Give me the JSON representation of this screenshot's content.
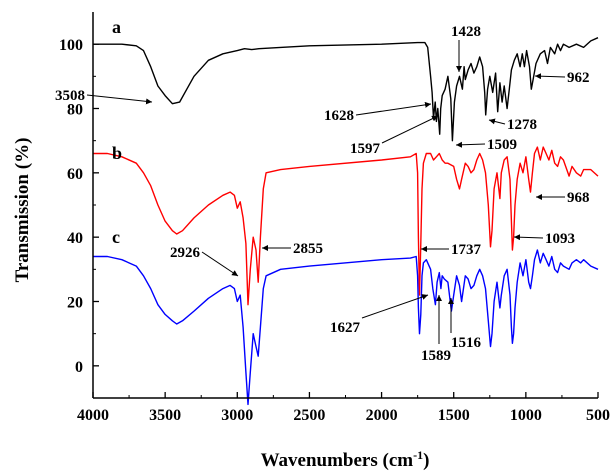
{
  "chart_data": {
    "type": "line",
    "title": "",
    "xlabel": "Wavenumbers (cm",
    "xlabel_sup": "-1",
    "xlabel_close": ")",
    "ylabel": "Transmission (%)",
    "xlim": [
      4000,
      500
    ],
    "ylim": [
      -10,
      110
    ],
    "x_reversed": true,
    "x_ticks": [
      4000,
      3500,
      3000,
      2500,
      2000,
      1500,
      1000,
      500
    ],
    "y_ticks": [
      0,
      20,
      40,
      60,
      80,
      100
    ],
    "grid": false,
    "series": [
      {
        "name": "a",
        "color": "#000000",
        "points": [
          [
            4000,
            100
          ],
          [
            3800,
            100
          ],
          [
            3700,
            99.5
          ],
          [
            3650,
            98
          ],
          [
            3600,
            93
          ],
          [
            3550,
            87
          ],
          [
            3500,
            84
          ],
          [
            3450,
            81.5
          ],
          [
            3400,
            82
          ],
          [
            3350,
            86
          ],
          [
            3300,
            90
          ],
          [
            3200,
            95
          ],
          [
            3100,
            97
          ],
          [
            3000,
            98
          ],
          [
            2950,
            98.6
          ],
          [
            2900,
            98.3
          ],
          [
            2850,
            98.6
          ],
          [
            2700,
            99
          ],
          [
            2500,
            99.5
          ],
          [
            2000,
            100
          ],
          [
            1750,
            100.5
          ],
          [
            1700,
            100.5
          ],
          [
            1680,
            99
          ],
          [
            1660,
            90
          ],
          [
            1650,
            85
          ],
          [
            1640,
            77
          ],
          [
            1628,
            82
          ],
          [
            1620,
            76
          ],
          [
            1610,
            80
          ],
          [
            1597,
            72
          ],
          [
            1590,
            80
          ],
          [
            1580,
            84
          ],
          [
            1560,
            86
          ],
          [
            1540,
            90
          ],
          [
            1520,
            83
          ],
          [
            1509,
            70
          ],
          [
            1495,
            82
          ],
          [
            1480,
            87
          ],
          [
            1460,
            90
          ],
          [
            1440,
            86
          ],
          [
            1428,
            93
          ],
          [
            1420,
            89
          ],
          [
            1400,
            92
          ],
          [
            1380,
            94
          ],
          [
            1360,
            91
          ],
          [
            1340,
            93
          ],
          [
            1320,
            96
          ],
          [
            1300,
            93
          ],
          [
            1285,
            85
          ],
          [
            1278,
            78
          ],
          [
            1265,
            86
          ],
          [
            1250,
            90
          ],
          [
            1230,
            85
          ],
          [
            1210,
            91
          ],
          [
            1195,
            79
          ],
          [
            1180,
            88
          ],
          [
            1165,
            82
          ],
          [
            1150,
            87
          ],
          [
            1130,
            80
          ],
          [
            1115,
            86
          ],
          [
            1100,
            92
          ],
          [
            1080,
            95
          ],
          [
            1060,
            97
          ],
          [
            1040,
            93
          ],
          [
            1025,
            97
          ],
          [
            1010,
            93
          ],
          [
            995,
            98
          ],
          [
            975,
            93
          ],
          [
            962,
            86
          ],
          [
            950,
            89
          ],
          [
            930,
            94
          ],
          [
            900,
            97
          ],
          [
            870,
            98
          ],
          [
            850,
            94
          ],
          [
            830,
            99
          ],
          [
            800,
            97
          ],
          [
            780,
            100
          ],
          [
            760,
            98
          ],
          [
            740,
            100
          ],
          [
            700,
            99
          ],
          [
            650,
            100
          ],
          [
            600,
            99
          ],
          [
            550,
            101
          ],
          [
            500,
            102
          ]
        ]
      },
      {
        "name": "b",
        "color": "#ff0000",
        "points": [
          [
            4000,
            66
          ],
          [
            3900,
            66
          ],
          [
            3800,
            65
          ],
          [
            3700,
            63
          ],
          [
            3650,
            60
          ],
          [
            3600,
            56
          ],
          [
            3550,
            50
          ],
          [
            3500,
            45
          ],
          [
            3450,
            42
          ],
          [
            3420,
            41
          ],
          [
            3380,
            42
          ],
          [
            3300,
            46
          ],
          [
            3200,
            50
          ],
          [
            3100,
            53
          ],
          [
            3050,
            54
          ],
          [
            3020,
            53
          ],
          [
            3000,
            49
          ],
          [
            2980,
            51
          ],
          [
            2960,
            46
          ],
          [
            2940,
            38
          ],
          [
            2926,
            19
          ],
          [
            2910,
            30
          ],
          [
            2890,
            40
          ],
          [
            2870,
            36
          ],
          [
            2855,
            26
          ],
          [
            2840,
            40
          ],
          [
            2820,
            55
          ],
          [
            2800,
            60
          ],
          [
            2700,
            61
          ],
          [
            2500,
            62
          ],
          [
            2000,
            64
          ],
          [
            1800,
            65
          ],
          [
            1760,
            66
          ],
          [
            1750,
            60
          ],
          [
            1745,
            40
          ],
          [
            1737,
            22
          ],
          [
            1728,
            38
          ],
          [
            1720,
            55
          ],
          [
            1710,
            63
          ],
          [
            1690,
            66
          ],
          [
            1660,
            66
          ],
          [
            1640,
            64
          ],
          [
            1620,
            65
          ],
          [
            1600,
            66
          ],
          [
            1580,
            64
          ],
          [
            1560,
            63
          ],
          [
            1540,
            63
          ],
          [
            1500,
            62
          ],
          [
            1480,
            58
          ],
          [
            1460,
            55
          ],
          [
            1445,
            58
          ],
          [
            1420,
            63
          ],
          [
            1400,
            62
          ],
          [
            1380,
            60
          ],
          [
            1360,
            61
          ],
          [
            1340,
            64
          ],
          [
            1320,
            66
          ],
          [
            1300,
            64
          ],
          [
            1280,
            60
          ],
          [
            1260,
            50
          ],
          [
            1245,
            37
          ],
          [
            1235,
            42
          ],
          [
            1220,
            55
          ],
          [
            1200,
            60
          ],
          [
            1180,
            52
          ],
          [
            1170,
            60
          ],
          [
            1150,
            64
          ],
          [
            1130,
            65
          ],
          [
            1110,
            58
          ],
          [
            1100,
            45
          ],
          [
            1093,
            36
          ],
          [
            1085,
            40
          ],
          [
            1075,
            50
          ],
          [
            1060,
            58
          ],
          [
            1040,
            63
          ],
          [
            1020,
            60
          ],
          [
            1000,
            65
          ],
          [
            980,
            58
          ],
          [
            968,
            54
          ],
          [
            955,
            60
          ],
          [
            940,
            66
          ],
          [
            920,
            68
          ],
          [
            900,
            64
          ],
          [
            880,
            68
          ],
          [
            860,
            66
          ],
          [
            840,
            64
          ],
          [
            820,
            67
          ],
          [
            800,
            63
          ],
          [
            780,
            62
          ],
          [
            760,
            65
          ],
          [
            740,
            64
          ],
          [
            700,
            59
          ],
          [
            680,
            62
          ],
          [
            650,
            60
          ],
          [
            620,
            59
          ],
          [
            600,
            61
          ],
          [
            550,
            61
          ],
          [
            500,
            59
          ]
        ]
      },
      {
        "name": "c",
        "color": "#0000ff",
        "points": [
          [
            4000,
            34
          ],
          [
            3900,
            34
          ],
          [
            3800,
            33
          ],
          [
            3700,
            31
          ],
          [
            3650,
            28
          ],
          [
            3600,
            24
          ],
          [
            3550,
            19
          ],
          [
            3500,
            16
          ],
          [
            3450,
            14
          ],
          [
            3420,
            13
          ],
          [
            3380,
            14
          ],
          [
            3300,
            17
          ],
          [
            3200,
            21
          ],
          [
            3100,
            24
          ],
          [
            3050,
            25
          ],
          [
            3020,
            24
          ],
          [
            3000,
            20
          ],
          [
            2980,
            22
          ],
          [
            2960,
            12
          ],
          [
            2940,
            -2
          ],
          [
            2926,
            -12
          ],
          [
            2910,
            -2
          ],
          [
            2890,
            10
          ],
          [
            2870,
            6
          ],
          [
            2855,
            3
          ],
          [
            2840,
            12
          ],
          [
            2820,
            24
          ],
          [
            2800,
            28
          ],
          [
            2700,
            30
          ],
          [
            2500,
            31
          ],
          [
            2000,
            33
          ],
          [
            1800,
            33.5
          ],
          [
            1760,
            34
          ],
          [
            1750,
            28
          ],
          [
            1745,
            18
          ],
          [
            1737,
            10
          ],
          [
            1728,
            16
          ],
          [
            1720,
            28
          ],
          [
            1710,
            32
          ],
          [
            1690,
            33
          ],
          [
            1660,
            30
          ],
          [
            1645,
            24
          ],
          [
            1627,
            19
          ],
          [
            1615,
            26
          ],
          [
            1600,
            29
          ],
          [
            1589,
            24
          ],
          [
            1580,
            28
          ],
          [
            1565,
            27
          ],
          [
            1540,
            26
          ],
          [
            1516,
            17
          ],
          [
            1500,
            22
          ],
          [
            1480,
            28
          ],
          [
            1460,
            25
          ],
          [
            1445,
            20
          ],
          [
            1420,
            28
          ],
          [
            1400,
            27
          ],
          [
            1380,
            24
          ],
          [
            1360,
            25
          ],
          [
            1340,
            28
          ],
          [
            1320,
            30
          ],
          [
            1300,
            28
          ],
          [
            1280,
            24
          ],
          [
            1260,
            14
          ],
          [
            1245,
            6
          ],
          [
            1235,
            10
          ],
          [
            1220,
            20
          ],
          [
            1200,
            26
          ],
          [
            1180,
            18
          ],
          [
            1170,
            22
          ],
          [
            1150,
            28
          ],
          [
            1130,
            30
          ],
          [
            1110,
            22
          ],
          [
            1100,
            12
          ],
          [
            1093,
            7
          ],
          [
            1085,
            10
          ],
          [
            1075,
            18
          ],
          [
            1060,
            26
          ],
          [
            1040,
            32
          ],
          [
            1020,
            28
          ],
          [
            1000,
            33
          ],
          [
            980,
            26
          ],
          [
            968,
            24
          ],
          [
            955,
            28
          ],
          [
            940,
            33
          ],
          [
            920,
            36
          ],
          [
            900,
            32
          ],
          [
            880,
            35
          ],
          [
            860,
            33
          ],
          [
            840,
            31
          ],
          [
            820,
            34
          ],
          [
            800,
            30
          ],
          [
            780,
            29
          ],
          [
            760,
            32
          ],
          [
            740,
            31
          ],
          [
            700,
            30
          ],
          [
            680,
            32
          ],
          [
            650,
            33
          ],
          [
            620,
            32
          ],
          [
            600,
            33
          ],
          [
            550,
            31
          ],
          [
            500,
            30
          ]
        ]
      }
    ],
    "annotations": [
      {
        "text": "3508",
        "x": 3508,
        "y": 82,
        "anchor": "end"
      },
      {
        "text": "1428",
        "x": 1428,
        "y": 93,
        "anchor": "middle"
      },
      {
        "text": "962",
        "x": 962,
        "y": 86,
        "anchor": "start"
      },
      {
        "text": "1628",
        "x": 1628,
        "y": 82,
        "anchor": "end"
      },
      {
        "text": "1278",
        "x": 1278,
        "y": 78,
        "anchor": "start"
      },
      {
        "text": "1597",
        "x": 1597,
        "y": 72,
        "anchor": "end"
      },
      {
        "text": "1509",
        "x": 1509,
        "y": 70,
        "anchor": "start"
      },
      {
        "text": "968",
        "x": 968,
        "y": 54,
        "anchor": "start"
      },
      {
        "text": "2855",
        "x": 2855,
        "y": 26,
        "anchor": "start"
      },
      {
        "text": "1737",
        "x": 1737,
        "y": 22,
        "anchor": "start"
      },
      {
        "text": "1093",
        "x": 1093,
        "y": 36,
        "anchor": "start"
      },
      {
        "text": "2926",
        "x": 2926,
        "y": 19,
        "anchor": "end"
      },
      {
        "text": "1627",
        "x": 1627,
        "y": 19,
        "anchor": "end"
      },
      {
        "text": "1516",
        "x": 1516,
        "y": 17,
        "anchor": "start"
      },
      {
        "text": "1589",
        "x": 1589,
        "y": 24,
        "anchor": "middle"
      }
    ]
  }
}
